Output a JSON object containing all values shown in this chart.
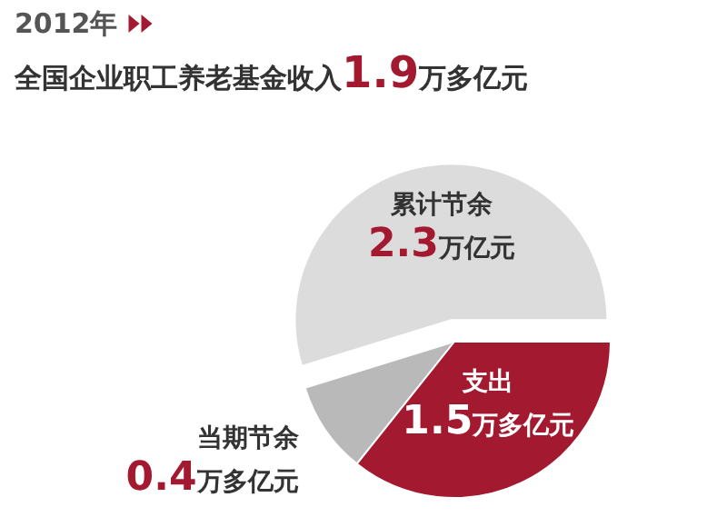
{
  "chart_data": {
    "type": "pie",
    "title": "2012年",
    "subtitle": "全国企业职工养老基金收入1.9万多亿元",
    "categories": [
      "累计节余",
      "当期节余",
      "支出"
    ],
    "values": [
      2.3,
      0.4,
      1.5
    ],
    "colors": [
      "#dcdcdc",
      "#b9b9b9",
      "#a3192f"
    ],
    "value_labels": [
      "2.3万亿元",
      "0.4万多亿元",
      "1.5万多亿元"
    ]
  }
}
